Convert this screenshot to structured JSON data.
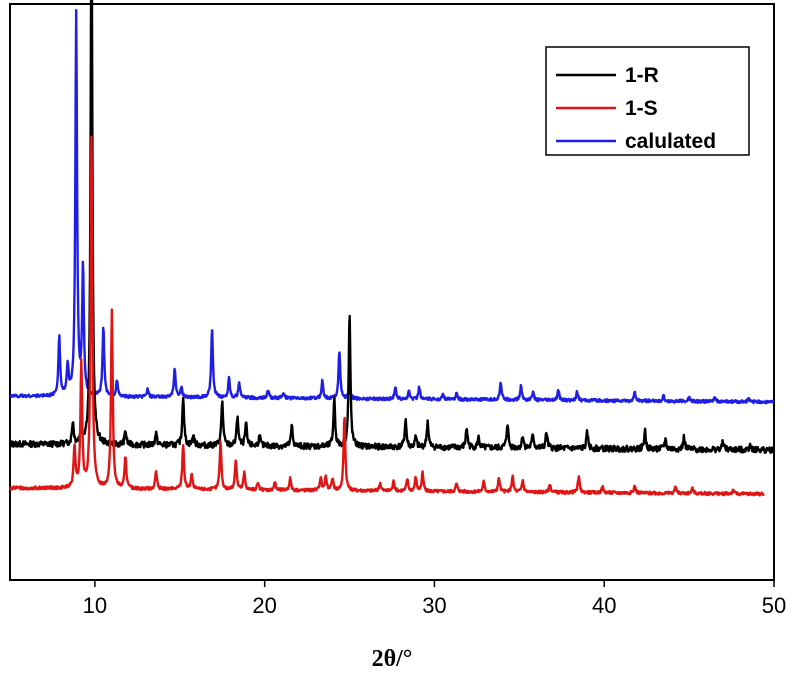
{
  "chart_data": {
    "type": "line",
    "xlabel": "2θ/°",
    "ylabel": "",
    "xlim": [
      5,
      50
    ],
    "xticks": [
      10,
      20,
      30,
      40,
      50
    ],
    "y_ticks_visible": false,
    "grid": false,
    "legend_position": "top-right",
    "series": [
      {
        "name": "1-R",
        "color": "#000000",
        "x_range": [
          5,
          50
        ],
        "baseline": 92,
        "noise": 3,
        "peaks": [
          [
            8.7,
            22
          ],
          [
            9.2,
            18
          ],
          [
            9.8,
            540
          ],
          [
            11.8,
            14
          ],
          [
            13.6,
            12
          ],
          [
            15.2,
            50
          ],
          [
            15.8,
            10
          ],
          [
            17.5,
            45
          ],
          [
            18.4,
            30
          ],
          [
            18.9,
            22
          ],
          [
            19.7,
            10
          ],
          [
            21.6,
            20
          ],
          [
            24.1,
            48
          ],
          [
            25.0,
            132
          ],
          [
            28.3,
            28
          ],
          [
            28.9,
            10
          ],
          [
            29.6,
            26
          ],
          [
            31.9,
            20
          ],
          [
            32.6,
            10
          ],
          [
            34.3,
            25
          ],
          [
            35.2,
            12
          ],
          [
            35.8,
            14
          ],
          [
            36.6,
            16
          ],
          [
            39.0,
            16
          ],
          [
            42.4,
            18
          ],
          [
            43.6,
            10
          ],
          [
            44.7,
            12
          ],
          [
            47.0,
            8
          ],
          [
            48.6,
            6
          ]
        ]
      },
      {
        "name": "1-S",
        "color": "#e11414",
        "x_range": [
          5,
          49.4
        ],
        "baseline": 48,
        "noise": 1.5,
        "peaks": [
          [
            8.8,
            42
          ],
          [
            9.2,
            125
          ],
          [
            9.8,
            350
          ],
          [
            11.0,
            178
          ],
          [
            11.8,
            32
          ],
          [
            13.6,
            18
          ],
          [
            15.2,
            45
          ],
          [
            15.7,
            15
          ],
          [
            17.4,
            48
          ],
          [
            18.3,
            30
          ],
          [
            18.8,
            17
          ],
          [
            19.6,
            6
          ],
          [
            20.6,
            8
          ],
          [
            21.5,
            12
          ],
          [
            23.3,
            13
          ],
          [
            23.6,
            14
          ],
          [
            24.0,
            12
          ],
          [
            24.7,
            75
          ],
          [
            26.8,
            8
          ],
          [
            27.6,
            10
          ],
          [
            28.4,
            12
          ],
          [
            28.9,
            14
          ],
          [
            29.3,
            18
          ],
          [
            31.3,
            8
          ],
          [
            32.9,
            10
          ],
          [
            33.8,
            14
          ],
          [
            34.6,
            16
          ],
          [
            35.2,
            12
          ],
          [
            36.8,
            8
          ],
          [
            38.5,
            16
          ],
          [
            39.9,
            6
          ],
          [
            41.8,
            7
          ],
          [
            44.2,
            6
          ],
          [
            45.2,
            5
          ],
          [
            47.6,
            4
          ]
        ]
      },
      {
        "name": "calulated",
        "color": "#1e1ee6",
        "x_range": [
          5,
          50
        ],
        "baseline": 140,
        "noise": 1.5,
        "peaks": [
          [
            7.9,
            60
          ],
          [
            8.4,
            30
          ],
          [
            8.9,
            382
          ],
          [
            9.3,
            128
          ],
          [
            10.5,
            70
          ],
          [
            11.3,
            16
          ],
          [
            13.1,
            8
          ],
          [
            14.7,
            30
          ],
          [
            15.1,
            10
          ],
          [
            16.9,
            68
          ],
          [
            17.9,
            20
          ],
          [
            18.5,
            15
          ],
          [
            20.2,
            8
          ],
          [
            21.1,
            6
          ],
          [
            23.4,
            18
          ],
          [
            24.4,
            48
          ],
          [
            25.0,
            12
          ],
          [
            27.7,
            12
          ],
          [
            28.5,
            8
          ],
          [
            29.1,
            12
          ],
          [
            30.5,
            6
          ],
          [
            31.3,
            6
          ],
          [
            33.9,
            18
          ],
          [
            35.1,
            14
          ],
          [
            35.8,
            8
          ],
          [
            37.3,
            10
          ],
          [
            38.4,
            9
          ],
          [
            41.8,
            8
          ],
          [
            43.5,
            5
          ],
          [
            45.0,
            4
          ],
          [
            46.5,
            4
          ],
          [
            48.5,
            3
          ]
        ]
      }
    ]
  }
}
